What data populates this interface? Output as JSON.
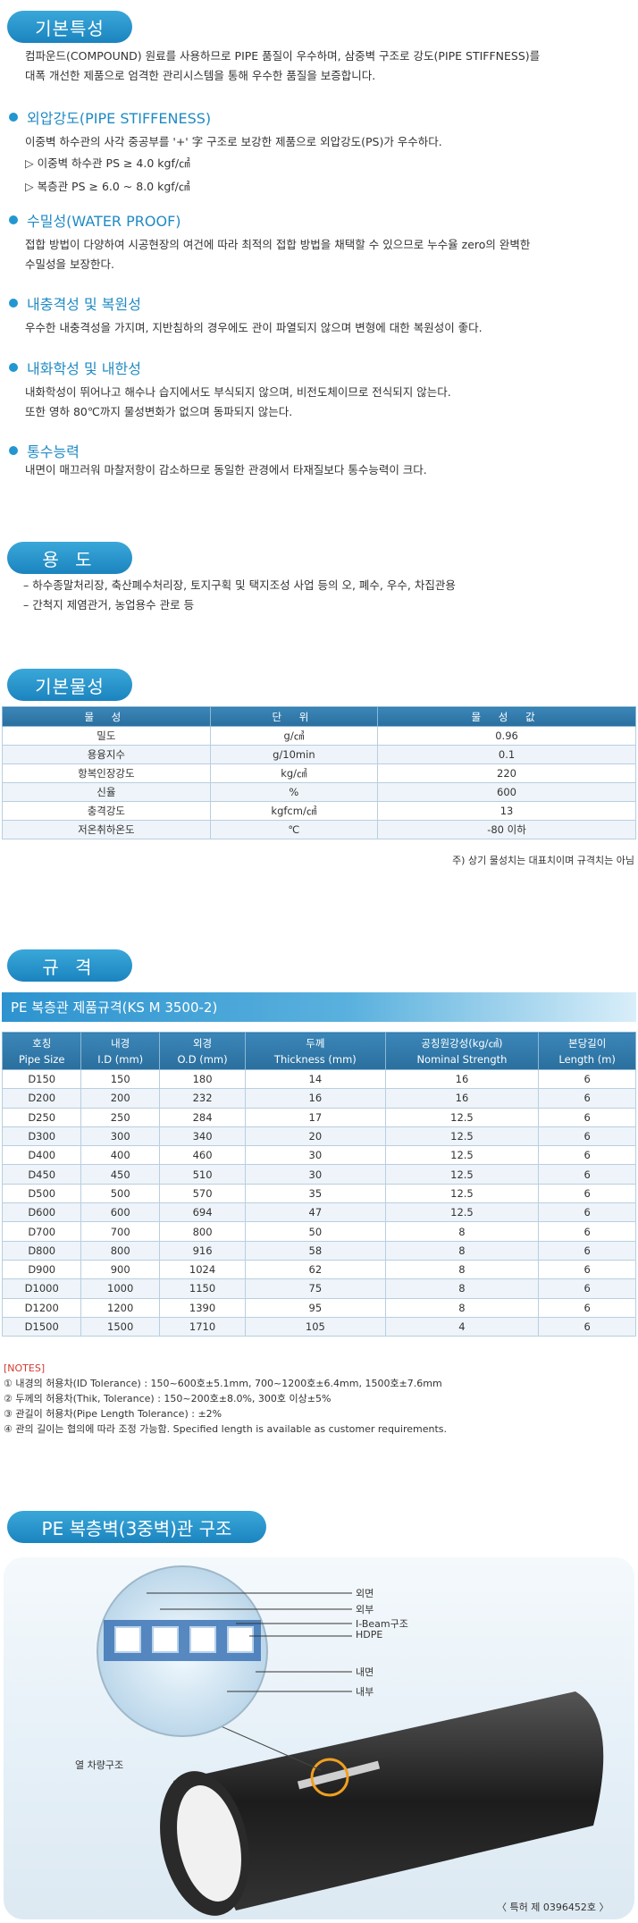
{
  "sections": {
    "features": "기본특성",
    "usage": "용 도",
    "properties": "기본물성",
    "spec": "규 격",
    "structure": "PE 복층벽(3중벽)관 구조"
  },
  "intro": {
    "line1": "컴파운드(COMPOUND) 원료를 사용하므로 PIPE 품질이 우수하며, 삼중벽 구조로 강도(PIPE STIFFNESS)를",
    "line2": "대폭 개선한 제품으로 엄격한 관리시스템을 통해 우수한 품질을 보증합니다."
  },
  "features": [
    {
      "title": "외압강도(PIPE STIFFENESS)",
      "lines": [
        "이중벽 하수관의 사각 중공부를 '+' 字 구조로 보강한 제품으로 외압강도(PS)가 우수하다.",
        "▷ 이중벽 하수관 PS ≥ 4.0 kgf/㎠",
        "▷ 복층관 PS ≥ 6.0 ~ 8.0 kgf/㎠"
      ]
    },
    {
      "title": "수밀성(WATER PROOF)",
      "lines": [
        "접합 방법이 다양하여 시공현장의 여건에 따라 최적의 접합 방법을 채택할 수 있으므로 누수율 zero의 완벽한",
        "수밀성을 보장한다."
      ]
    },
    {
      "title": "내충격성 및 복원성",
      "lines": [
        "우수한 내충격성을 가지며, 지반침하의 경우에도 관이 파열되지 않으며 변형에 대한 복원성이 좋다."
      ]
    },
    {
      "title": "내화학성 및 내한성",
      "lines": [
        "내화학성이 뛰어나고 해수나 습지에서도 부식되지 않으며, 비전도체이므로 전식되지 않는다.",
        "또한 영하 80℃까지 물성변화가 없으며 동파되지 않는다."
      ]
    },
    {
      "title": "통수능력",
      "lines": [
        "내면이 매끄러워 마찰저항이 감소하므로 동일한 관경에서 타재질보다 통수능력이 크다."
      ]
    }
  ],
  "usage": [
    "– 하수종말처리장, 축산폐수처리장, 토지구획 및 택지조성 사업 등의 오, 폐수, 우수, 차집관용",
    "– 간척지 제염관거, 농업용수 관로 등"
  ],
  "properties": {
    "headers": [
      "물 성",
      "단 위",
      "물 성 값"
    ],
    "rows": [
      [
        "밀도",
        "g/㎤",
        "0.96"
      ],
      [
        "용융지수",
        "g/10min",
        "0.1"
      ],
      [
        "항복인장강도",
        "kg/㎠",
        "220"
      ],
      [
        "신율",
        "%",
        "600"
      ],
      [
        "충격강도",
        "kgfcm/㎠",
        "13"
      ],
      [
        "저온취하온도",
        "℃",
        "-80 이하"
      ]
    ],
    "note": "주) 상기 물성치는 대표치이며 규격치는 아님"
  },
  "spec": {
    "bar_title": "PE 복층관 제품규격(KS M 3500-2)",
    "headers": [
      [
        "호칭",
        "Pipe Size"
      ],
      [
        "내경",
        "I.D (mm)"
      ],
      [
        "외경",
        "O.D (mm)"
      ],
      [
        "두께",
        "Thickness (mm)"
      ],
      [
        "공칭원강성(kg/㎠)",
        "Nominal Strength"
      ],
      [
        "본당길이",
        "Length (m)"
      ]
    ],
    "rows": [
      [
        "D150",
        "150",
        "180",
        "14",
        "16",
        "6"
      ],
      [
        "D200",
        "200",
        "232",
        "16",
        "16",
        "6"
      ],
      [
        "D250",
        "250",
        "284",
        "17",
        "12.5",
        "6"
      ],
      [
        "D300",
        "300",
        "340",
        "20",
        "12.5",
        "6"
      ],
      [
        "D400",
        "400",
        "460",
        "30",
        "12.5",
        "6"
      ],
      [
        "D450",
        "450",
        "510",
        "30",
        "12.5",
        "6"
      ],
      [
        "D500",
        "500",
        "570",
        "35",
        "12.5",
        "6"
      ],
      [
        "D600",
        "600",
        "694",
        "47",
        "12.5",
        "6"
      ],
      [
        "D700",
        "700",
        "800",
        "50",
        "8",
        "6"
      ],
      [
        "D800",
        "800",
        "916",
        "58",
        "8",
        "6"
      ],
      [
        "D900",
        "900",
        "1024",
        "62",
        "8",
        "6"
      ],
      [
        "D1000",
        "1000",
        "1150",
        "75",
        "8",
        "6"
      ],
      [
        "D1200",
        "1200",
        "1390",
        "95",
        "8",
        "6"
      ],
      [
        "D1500",
        "1500",
        "1710",
        "105",
        "4",
        "6"
      ]
    ]
  },
  "notes": {
    "title": "[NOTES]",
    "items": [
      "① 내경의 허용차(ID Tolerance) : 150~600호±5.1mm, 700~1200호±6.4mm, 1500호±7.6mm",
      "② 두께의 허용차(Thik, Tolerance) : 150~200호±8.0%, 300호 이상±5%",
      "③ 관길이 허용차(Pipe Length Tolerance) : ±2%",
      "④ 관의 길이는 협의에 따라 조정 가능함. Specified length is available as customer requirements."
    ]
  },
  "structure": {
    "labels": [
      "외면",
      "외부",
      "I-Beam구조",
      "HDPE",
      "내면",
      "내부"
    ],
    "heat_label": "열 차량구조",
    "patent": "〈 특허 제 0396452호 〉"
  },
  "colors": {
    "accent": "#2296d0",
    "header": "#2a6f9e",
    "note_red": "#d23a2f"
  }
}
